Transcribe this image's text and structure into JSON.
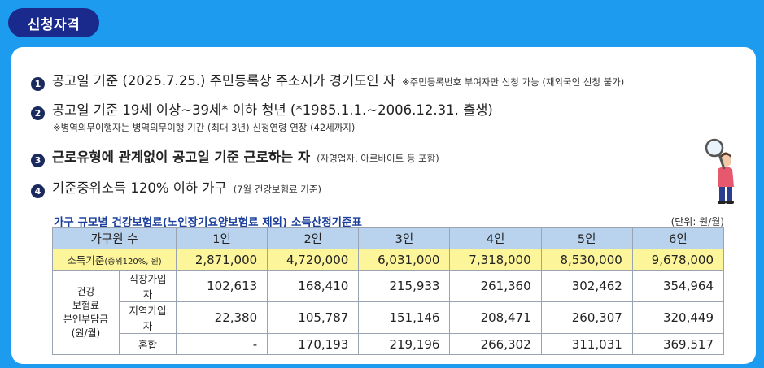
{
  "badge": {
    "label": "신청자격"
  },
  "criteria": [
    {
      "num": "1",
      "text": "공고일 기준 (2025.7.25.) 주민등록상 주소지가 경기도인 자",
      "note": "※주민등록번호 부여자만 신청 가능 (재외국인 신청 불가)"
    },
    {
      "num": "2",
      "text": "공고일 기준 19세 이상~39세* 이하 청년 (*1985.1.1.~2006.12.31. 출생)",
      "subnote": "※병역의무이행자는 병역의무이행 기간 (최대 3년) 신청연령 연장 (42세까지)"
    },
    {
      "num": "3",
      "text": "근로유형에 관계없이 공고일 기준 근로하는 자",
      "note": "(자영업자, 아르바이트 등 포함)"
    },
    {
      "num": "4",
      "text": "기준중위소득 120% 이하 가구",
      "note": "(7월 건강보험료 기준)"
    }
  ],
  "table": {
    "title": "가구 규모별 건강보험료(노인장기요양보험료 제외) 소득산정기준표",
    "unit": "(단위: 원/월)",
    "header": [
      "가구원 수",
      "1인",
      "2인",
      "3인",
      "4인",
      "5인",
      "6인"
    ],
    "income_row": {
      "label_main": "소득기준",
      "label_sub": "(중위120%, 원)",
      "values": [
        "2,871,000",
        "4,720,000",
        "6,031,000",
        "7,318,000",
        "8,530,000",
        "9,678,000"
      ]
    },
    "group_label": [
      "건강",
      "보험료",
      "본인부담금",
      "(원/월)"
    ],
    "rows": [
      {
        "label": "직장가입자",
        "values": [
          "102,613",
          "168,410",
          "215,933",
          "261,360",
          "302,462",
          "354,964"
        ]
      },
      {
        "label": "지역가입자",
        "values": [
          "22,380",
          "105,787",
          "151,146",
          "208,471",
          "260,307",
          "320,449"
        ]
      },
      {
        "label": "혼합",
        "values": [
          "-",
          "170,193",
          "219,196",
          "266,302",
          "311,031",
          "369,517"
        ]
      }
    ]
  },
  "colors": {
    "background": "#1d9cef",
    "badge": "#1a2a8c",
    "header_fill": "#b9d3ee",
    "highlight_fill": "#fdf59a",
    "title_blue": "#1a3f9c"
  },
  "icons": {
    "illustration": "person-with-magnifier-icon"
  }
}
